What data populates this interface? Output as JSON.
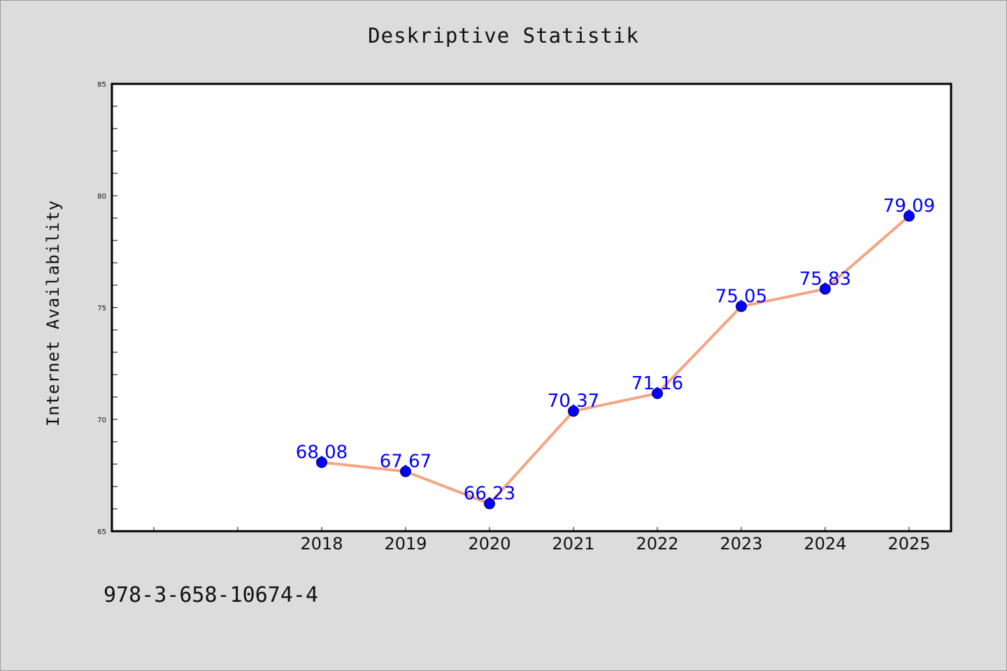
{
  "chart_data": {
    "type": "line",
    "title": "Deskriptive Statistik",
    "xlabel": "",
    "ylabel": "Internet Availability",
    "x": [
      "2018",
      "2019",
      "2020",
      "2021",
      "2022",
      "2023",
      "2024",
      "2025"
    ],
    "values": [
      68.08,
      67.67,
      66.23,
      70.37,
      71.16,
      75.05,
      75.83,
      79.09
    ],
    "data_labels": [
      "68.08",
      "67.67",
      "66.23",
      "70.37",
      "71.16",
      "75.05",
      "75.83",
      "79.09"
    ],
    "x_range": [
      2015.5,
      2025.5
    ],
    "ylim": [
      65,
      85
    ],
    "yticks": [
      "65",
      "70",
      "75",
      "80",
      "85"
    ],
    "grid": false,
    "legend": "none",
    "line_color": "#f4a582",
    "marker_color": "#0000ff",
    "label_color": "#0000ff"
  },
  "footer": {
    "code": "978-3-658-10674-4"
  }
}
